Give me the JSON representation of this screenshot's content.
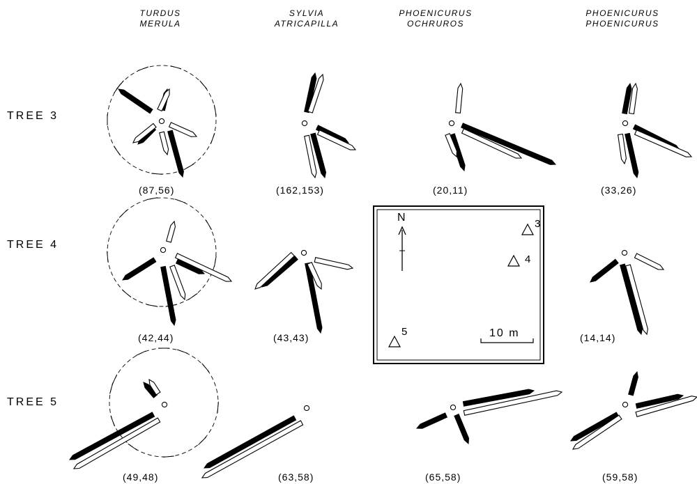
{
  "species": [
    {
      "line1": "TURDUS",
      "line2": "MERULA"
    },
    {
      "line1": "SYLVIA",
      "line2": "ATRICAPILLA"
    },
    {
      "line1": "PHOENICURUS",
      "line2": "OCHRUROS"
    },
    {
      "line1": "PHOENICURUS",
      "line2": "PHOENICURUS"
    }
  ],
  "rows": [
    {
      "label": "TREE 3",
      "counts": [
        "(87,56)",
        "(162,153)",
        "(20,11)",
        "(33,26)"
      ]
    },
    {
      "label": "TREE 4",
      "counts": [
        "(42,44)",
        "(43,43)",
        "",
        "(14,14)"
      ]
    },
    {
      "label": "TREE 5",
      "counts": [
        "(49,48)",
        "(63,58)",
        "(65,58)",
        "(59,58)"
      ]
    }
  ],
  "map": {
    "north_label": "N",
    "tree_labels": [
      "3",
      "4",
      "5"
    ],
    "scale_label": "10 m"
  },
  "colors": {
    "ink": "#000000",
    "paper": "#ffffff"
  }
}
